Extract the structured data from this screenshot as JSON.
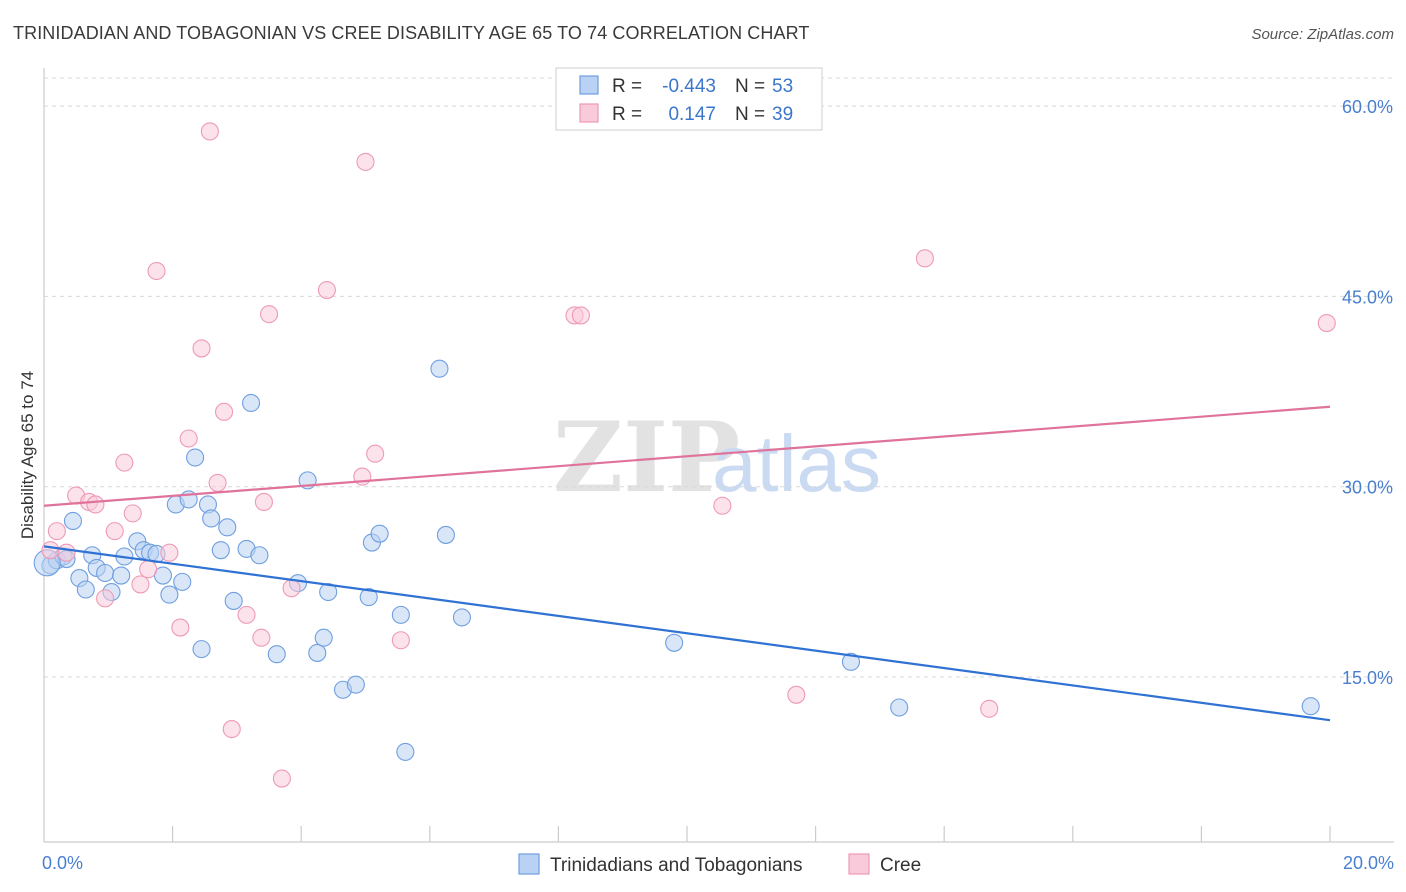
{
  "chart_data": {
    "type": "scatter",
    "title": "TRINIDADIAN AND TOBAGONIAN VS CREE DISABILITY AGE 65 TO 74 CORRELATION CHART",
    "source": "Source: ZipAtlas.com",
    "xlabel": "",
    "ylabel": "Disability Age 65 to 74",
    "xlim": [
      0,
      20
    ],
    "ylim": [
      2,
      63
    ],
    "x_tick_labels": {
      "left": "0.0%",
      "right": "20.0%"
    },
    "y_ticks": [
      {
        "value": 15,
        "label": "15.0%"
      },
      {
        "value": 30,
        "label": "30.0%"
      },
      {
        "value": 45,
        "label": "45.0%"
      },
      {
        "value": 60,
        "label": "60.0%"
      }
    ],
    "grid": true,
    "watermark": {
      "zip": "ZIP",
      "atlas": "atlas"
    },
    "legend_top": {
      "rows": [
        {
          "r_label": "R = ",
          "r_value": "-0.443",
          "n_label": "N = ",
          "n_value": "53"
        },
        {
          "r_label": "R = ",
          "r_value": "0.147",
          "n_label": "N = ",
          "n_value": "39"
        }
      ]
    },
    "series": [
      {
        "name": "Trinidadians and Tobagonians",
        "color": "#6f9fe0",
        "fill": "#b9d1f3",
        "line_color": "#2f72d4",
        "trend": {
          "x0": 0.0,
          "y0": 25.3,
          "x1": 20.0,
          "y1": 11.6
        },
        "points": [
          [
            0.1,
            23.8
          ],
          [
            0.2,
            24.2
          ],
          [
            0.3,
            24.5
          ],
          [
            0.35,
            24.3
          ],
          [
            0.45,
            27.3
          ],
          [
            0.55,
            22.8
          ],
          [
            0.65,
            21.9
          ],
          [
            0.75,
            24.6
          ],
          [
            0.82,
            23.6
          ],
          [
            0.95,
            23.2
          ],
          [
            1.05,
            21.7
          ],
          [
            1.2,
            23.0
          ],
          [
            1.25,
            24.5
          ],
          [
            1.45,
            25.7
          ],
          [
            1.55,
            25.0
          ],
          [
            1.65,
            24.8
          ],
          [
            1.75,
            24.7
          ],
          [
            1.85,
            23.0
          ],
          [
            1.95,
            21.5
          ],
          [
            2.05,
            28.6
          ],
          [
            2.15,
            22.5
          ],
          [
            2.25,
            29.0
          ],
          [
            2.35,
            32.3
          ],
          [
            2.45,
            17.2
          ],
          [
            2.55,
            28.6
          ],
          [
            2.6,
            27.5
          ],
          [
            2.75,
            25.0
          ],
          [
            2.85,
            26.8
          ],
          [
            2.95,
            21.0
          ],
          [
            3.15,
            25.1
          ],
          [
            3.22,
            36.6
          ],
          [
            3.35,
            24.6
          ],
          [
            3.62,
            16.8
          ],
          [
            3.95,
            22.4
          ],
          [
            4.1,
            30.5
          ],
          [
            4.25,
            16.9
          ],
          [
            4.35,
            18.1
          ],
          [
            4.42,
            21.7
          ],
          [
            4.65,
            14.0
          ],
          [
            4.85,
            14.4
          ],
          [
            5.05,
            21.3
          ],
          [
            5.1,
            25.6
          ],
          [
            5.22,
            26.3
          ],
          [
            5.55,
            19.9
          ],
          [
            5.62,
            9.1
          ],
          [
            6.15,
            39.3
          ],
          [
            6.25,
            26.2
          ],
          [
            6.5,
            19.7
          ],
          [
            9.8,
            17.7
          ],
          [
            12.55,
            16.2
          ],
          [
            13.3,
            12.6
          ],
          [
            19.7,
            12.7
          ],
          [
            0.05,
            24.0
          ]
        ]
      },
      {
        "name": "Cree",
        "color": "#ee9ab6",
        "fill": "#f9cad9",
        "line_color": "#e0739b",
        "trend": {
          "x0": 0.0,
          "y0": 28.5,
          "x1": 20.0,
          "y1": 36.3
        },
        "points": [
          [
            0.1,
            25.0
          ],
          [
            0.2,
            26.5
          ],
          [
            0.35,
            24.8
          ],
          [
            0.5,
            29.3
          ],
          [
            0.7,
            28.8
          ],
          [
            0.8,
            28.6
          ],
          [
            0.95,
            21.2
          ],
          [
            1.1,
            26.5
          ],
          [
            1.25,
            31.9
          ],
          [
            1.38,
            27.9
          ],
          [
            1.5,
            22.3
          ],
          [
            1.62,
            23.5
          ],
          [
            1.75,
            47.0
          ],
          [
            1.95,
            24.8
          ],
          [
            2.12,
            18.9
          ],
          [
            2.25,
            33.8
          ],
          [
            2.45,
            40.9
          ],
          [
            2.58,
            58.0
          ],
          [
            2.7,
            30.3
          ],
          [
            2.8,
            35.9
          ],
          [
            2.92,
            10.9
          ],
          [
            3.15,
            19.9
          ],
          [
            3.38,
            18.1
          ],
          [
            3.42,
            28.8
          ],
          [
            3.5,
            43.6
          ],
          [
            3.7,
            7.0
          ],
          [
            3.85,
            22.0
          ],
          [
            4.4,
            45.5
          ],
          [
            4.95,
            30.8
          ],
          [
            5.0,
            55.6
          ],
          [
            5.15,
            32.6
          ],
          [
            5.55,
            17.9
          ],
          [
            8.25,
            43.5
          ],
          [
            8.35,
            43.5
          ],
          [
            10.55,
            28.5
          ],
          [
            11.7,
            13.6
          ],
          [
            13.7,
            48.0
          ],
          [
            14.7,
            12.5
          ],
          [
            19.95,
            42.9
          ]
        ]
      }
    ]
  }
}
